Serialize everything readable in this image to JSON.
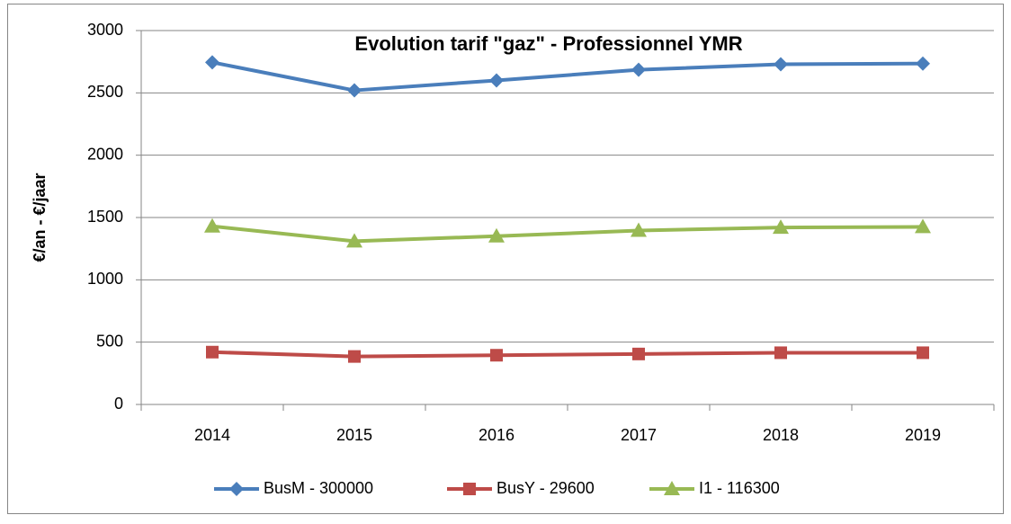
{
  "chart_data": {
    "type": "line",
    "title": "Evolution tarif \"gaz\" - Professionnel YMR",
    "y_label": "€/an - €/jaar",
    "categories": [
      "2014",
      "2015",
      "2016",
      "2017",
      "2018",
      "2019"
    ],
    "series": [
      {
        "name": "BusM - 300000",
        "color": "#4a7ebb",
        "marker": "diamond",
        "values": [
          2745,
          2520,
          2600,
          2685,
          2730,
          2735
        ]
      },
      {
        "name": "BusY - 29600",
        "color": "#be4b48",
        "marker": "square",
        "values": [
          420,
          385,
          395,
          405,
          415,
          415
        ]
      },
      {
        "name": "I1 - 116300",
        "color": "#98b954",
        "marker": "triangle",
        "values": [
          1430,
          1310,
          1350,
          1395,
          1420,
          1425
        ]
      }
    ],
    "ylim": [
      0,
      3000
    ],
    "yticks": [
      0,
      500,
      1000,
      1500,
      2000,
      2500,
      3000
    ],
    "grid": true,
    "legend": "bottom"
  }
}
